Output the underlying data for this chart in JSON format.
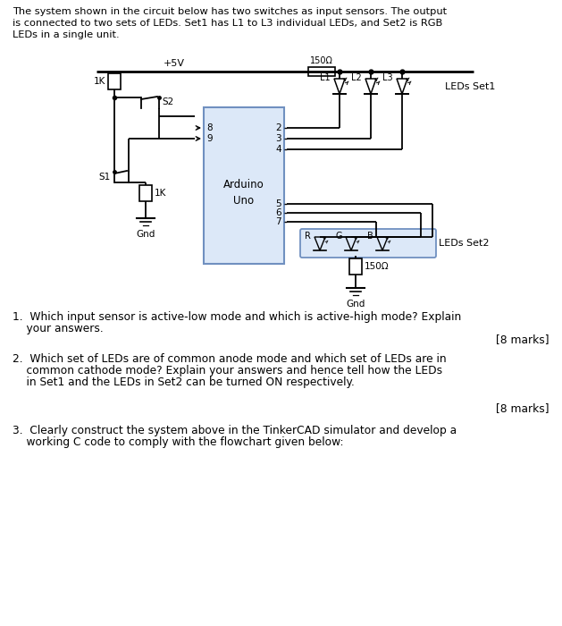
{
  "bg_color": "#ffffff",
  "text_color": "#000000",
  "cc": "#000000",
  "arduino_edge": "#7090c0",
  "arduino_face": "#dce8f8",
  "rgb_edge": "#7090c0",
  "rgb_face": "#dce8f8",
  "title": "The system shown in the circuit below has two switches as input sensors. The output\nis connected to two sets of LEDs. Set1 has L1 to L3 individual LEDs, and Set2 is RGB\nLEDs in a single unit.",
  "q1a": "1.  Which input sensor is active-low mode and which is active-high mode? Explain",
  "q1b": "    your answers.",
  "q1m": "[8 marks]",
  "q2a": "2.  Which set of LEDs are of common anode mode and which set of LEDs are in",
  "q2b": "    common cathode mode? Explain your answers and hence tell how the LEDs",
  "q2c": "    in Set1 and the LEDs in Set2 can be turned ON respectively.",
  "q2m": "[8 marks]",
  "q3a": "3.  Clearly construct the system above in the TinkerCAD simulator and develop a",
  "q3b": "    working C code to comply with the flowchart given below:"
}
